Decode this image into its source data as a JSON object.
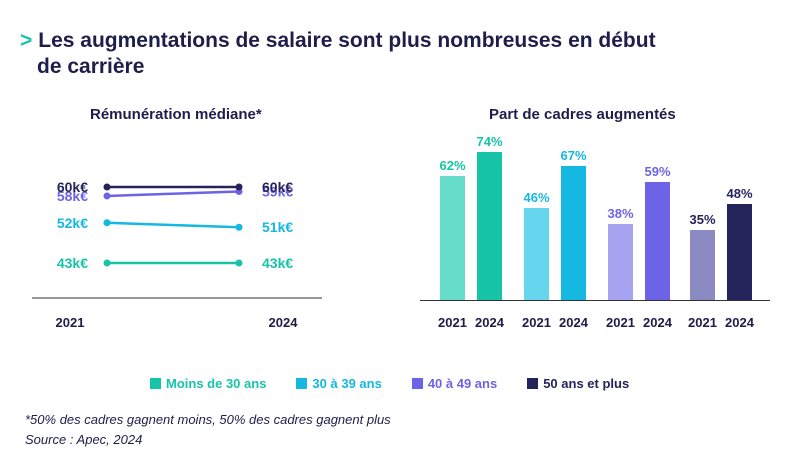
{
  "title": {
    "chevron": ">",
    "line1": "Les augmentations de salaire sont plus nombreuses en début",
    "line2": "de carrière"
  },
  "colors": {
    "group1": "#17c4a8",
    "group1_light": "#66dccb",
    "group2": "#14b8e0",
    "group2_light": "#66d6ee",
    "group3": "#6c63e6",
    "group3_light": "#a7a3f0",
    "group4": "#25235c",
    "group4_light": "#8b8ac2",
    "axis": "#333333"
  },
  "legend": [
    {
      "label": "Moins de 30 ans",
      "color": "#17c4a8"
    },
    {
      "label": "30 à 39 ans",
      "color": "#14b8e0"
    },
    {
      "label": "40 à 49 ans",
      "color": "#6c63e6"
    },
    {
      "label": "50 ans et plus",
      "color": "#25235c"
    }
  ],
  "chart_data": [
    {
      "type": "line",
      "title": "Rémunération médiane*",
      "x": [
        "2021",
        "2024"
      ],
      "unit": "k€",
      "ylim": [
        40,
        62
      ],
      "series": [
        {
          "name": "Moins de 30 ans",
          "values": [
            43,
            43
          ],
          "labels": [
            "43k€",
            "43k€"
          ],
          "color": "#17c4a8"
        },
        {
          "name": "30 à 39 ans",
          "values": [
            52,
            51
          ],
          "labels": [
            "52k€",
            "51k€"
          ],
          "color": "#14b8e0"
        },
        {
          "name": "40 à 49 ans",
          "values": [
            58,
            59
          ],
          "labels": [
            "58k€",
            "59k€"
          ],
          "color": "#6c63e6"
        },
        {
          "name": "50 ans et plus",
          "values": [
            60,
            60
          ],
          "labels": [
            "60k€",
            "60k€"
          ],
          "color": "#25235c"
        }
      ]
    },
    {
      "type": "bar",
      "title": "Part de cadres augmentés",
      "unit": "%",
      "ylim": [
        0,
        100
      ],
      "groups": [
        {
          "name": "Moins de 30 ans",
          "categories": [
            "2021",
            "2024"
          ],
          "values": [
            62,
            74
          ],
          "labels": [
            "62%",
            "74%"
          ],
          "colors": [
            "#66dccb",
            "#17c4a8"
          ],
          "label_color": "#17c4a8"
        },
        {
          "name": "30 à 39 ans",
          "categories": [
            "2021",
            "2024"
          ],
          "values": [
            46,
            67
          ],
          "labels": [
            "46%",
            "67%"
          ],
          "colors": [
            "#66d6ee",
            "#14b8e0"
          ],
          "label_color": "#14b8e0"
        },
        {
          "name": "40 à 49 ans",
          "categories": [
            "2021",
            "2024"
          ],
          "values": [
            38,
            59
          ],
          "labels": [
            "38%",
            "59%"
          ],
          "colors": [
            "#a7a3f0",
            "#6c63e6"
          ],
          "label_color": "#6c63e6"
        },
        {
          "name": "50 ans et plus",
          "categories": [
            "2021",
            "2024"
          ],
          "values": [
            35,
            48
          ],
          "labels": [
            "35%",
            "48%"
          ],
          "colors": [
            "#8b8ac2",
            "#25235c"
          ],
          "label_color": "#25235c"
        }
      ]
    }
  ],
  "footnote": "*50% des cadres gagnent moins, 50% des cadres gagnent plus",
  "source": "Source : Apec, 2024"
}
